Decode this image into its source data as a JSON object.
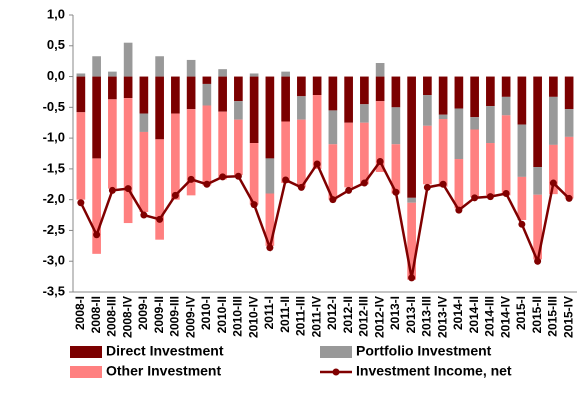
{
  "chart_data": {
    "type": "bar",
    "categories": [
      "2008-I",
      "2008-II",
      "2008-III",
      "2008-IV",
      "2009-I",
      "2009-II",
      "2009-III",
      "2009-IV",
      "2010-I",
      "2010-II",
      "2010-III",
      "2010-IV",
      "2011-I",
      "2011-II",
      "2011-III",
      "2011-IV",
      "2012-I",
      "2012-II",
      "2012-III",
      "2012-IV",
      "2013-I",
      "2013-II",
      "2013-III",
      "2013-IV",
      "2014-I",
      "2014-II",
      "2014-III",
      "2014-IV",
      "2015-I",
      "2015-II",
      "2015-III",
      "2015-IV"
    ],
    "series": [
      {
        "name": "Direct Investment",
        "color": "#7b0000",
        "values": [
          -0.58,
          -1.33,
          -0.37,
          -0.35,
          -0.6,
          -1.02,
          -0.6,
          -0.53,
          -0.12,
          -0.57,
          -0.4,
          -1.08,
          -1.33,
          -0.73,
          -0.32,
          -0.3,
          -0.55,
          -0.75,
          -0.45,
          -0.4,
          -0.5,
          -1.97,
          -0.3,
          -0.62,
          -0.52,
          -0.66,
          -0.48,
          -0.33,
          -0.78,
          -1.47,
          -0.33,
          -0.53
        ]
      },
      {
        "name": "Portfolio Investment",
        "color": "#999999",
        "values": [
          0.05,
          0.33,
          0.08,
          0.55,
          -0.3,
          0.33,
          0,
          0.27,
          -0.35,
          0.12,
          -0.3,
          0.05,
          -0.57,
          0.08,
          -0.38,
          0,
          -0.55,
          0,
          -0.3,
          0.22,
          -0.6,
          -0.08,
          -0.5,
          -0.07,
          -0.82,
          -0.2,
          -0.6,
          -0.3,
          -0.85,
          -0.45,
          -0.78,
          -0.45
        ]
      },
      {
        "name": "Other Investment",
        "color": "#ff8080",
        "values": [
          -1.42,
          -1.55,
          -1.45,
          -2.03,
          -1.3,
          -1.63,
          -1.4,
          -1.4,
          -1.3,
          -1.1,
          -0.9,
          -1.0,
          -0.85,
          -1.0,
          -1.1,
          -1.2,
          -0.9,
          -1.05,
          -1.0,
          -1.15,
          -0.8,
          -1.25,
          -0.95,
          -1.1,
          -0.8,
          -1.1,
          -0.85,
          -1.3,
          -0.7,
          -1.05,
          -0.8,
          -1.0
        ]
      },
      {
        "name": "Investment Income, net",
        "type": "line",
        "color": "#800000",
        "values": [
          -2.05,
          -2.57,
          -1.85,
          -1.82,
          -2.25,
          -2.32,
          -1.93,
          -1.67,
          -1.75,
          -1.63,
          -1.62,
          -2.08,
          -2.78,
          -1.68,
          -1.8,
          -1.42,
          -2.0,
          -1.85,
          -1.73,
          -1.38,
          -1.88,
          -3.27,
          -1.8,
          -1.75,
          -2.17,
          -1.97,
          -1.95,
          -1.9,
          -2.4,
          -3.0,
          -1.73,
          -1.98
        ]
      }
    ],
    "ylim": [
      -3.5,
      1.0
    ],
    "yticks": [
      {
        "value": 1.0,
        "label": "1,0"
      },
      {
        "value": 0.5,
        "label": "0,5"
      },
      {
        "value": 0,
        "label": "0,0"
      },
      {
        "value": -0.5,
        "label": "-0,5"
      },
      {
        "value": -1.0,
        "label": "-1,0"
      },
      {
        "value": -1.5,
        "label": "-1,5"
      },
      {
        "value": -2.0,
        "label": "-2,0"
      },
      {
        "value": -2.5,
        "label": "-2,5"
      },
      {
        "value": -3.0,
        "label": "-3,0"
      },
      {
        "value": -3.5,
        "label": "-3,5"
      }
    ],
    "grid": false
  }
}
